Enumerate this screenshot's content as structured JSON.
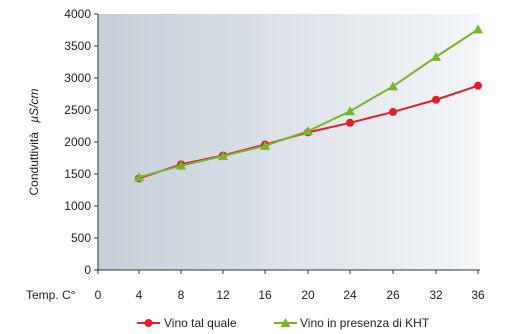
{
  "chart_data": {
    "type": "line",
    "x": [
      "4",
      "8",
      "12",
      "16",
      "20",
      "24",
      "26",
      "32",
      "36"
    ],
    "x_axis_prefix_label": "Temp. C°",
    "x_origin_tick": "0",
    "ylabel_text": "Conduttività",
    "ylabel_unit": "µS/cm",
    "ylim": [
      0,
      4000
    ],
    "yticks": [
      0,
      500,
      1000,
      1500,
      2000,
      2500,
      3000,
      3500,
      4000
    ],
    "grid": false,
    "legend_position": "bottom",
    "series": [
      {
        "name": "Vino tal quale",
        "color": "#e0202a",
        "marker": "circle",
        "values": [
          1430,
          1650,
          1790,
          1960,
          2150,
          2300,
          2470,
          2660,
          2880
        ]
      },
      {
        "name": "Vino in presenza di KHT",
        "color": "#7ab32e",
        "marker": "triangle",
        "values": [
          1450,
          1630,
          1780,
          1940,
          2170,
          2480,
          2870,
          3330,
          3760
        ]
      }
    ],
    "background_gradient": [
      "#c5cfd9",
      "#f4f6f8"
    ]
  }
}
